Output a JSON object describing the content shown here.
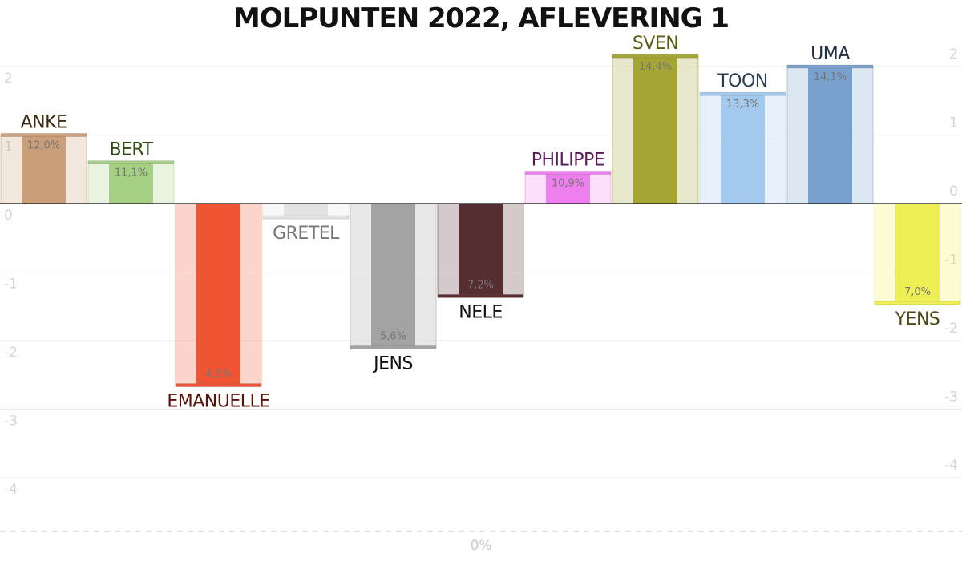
{
  "chart_data": {
    "type": "bar",
    "title": "MOLPUNTEN 2022, AFLEVERING 1",
    "bottom_label": "0%",
    "ylim": [
      -4.8,
      2.2
    ],
    "yticks_left": [
      "2",
      "1",
      "0",
      "-1",
      "-2",
      "-3",
      "-4"
    ],
    "yticks_right": [
      "2",
      "1",
      "0",
      "-1",
      "-2",
      "-3",
      "-4"
    ],
    "grid": true,
    "categories": [
      "ANKE",
      "BERT",
      "EMANUELLE",
      "GRETEL",
      "JENS",
      "NELE",
      "PHILIPPE",
      "SVEN",
      "TOON",
      "UMA",
      "YENS"
    ],
    "values": [
      1.0,
      0.6,
      -2.65,
      -0.2,
      -2.1,
      -1.35,
      0.45,
      2.15,
      1.6,
      2.0,
      -1.45
    ],
    "labels": [
      "12,0%",
      "11,1%",
      "4,5%",
      "",
      "5,6%",
      "7,2%",
      "10,9%",
      "14,4%",
      "13,3%",
      "14,1%",
      "7,0%"
    ],
    "colors": {
      "bars": [
        "#c99e78",
        "#a5cf82",
        "#f05533",
        "#e2e2e2",
        "#a3a3a3",
        "#562d30",
        "#ee7fee",
        "#a4a532",
        "#a4c9ef",
        "#79a1cd",
        "#eeee55"
      ],
      "names": [
        "#3e2a12",
        "#2f4a12",
        "#5a1208",
        "#777777",
        "#111111",
        "#111111",
        "#5a1a5a",
        "#5a5a10",
        "#2a3e52",
        "#1e2e44",
        "#4a4a10"
      ]
    }
  }
}
